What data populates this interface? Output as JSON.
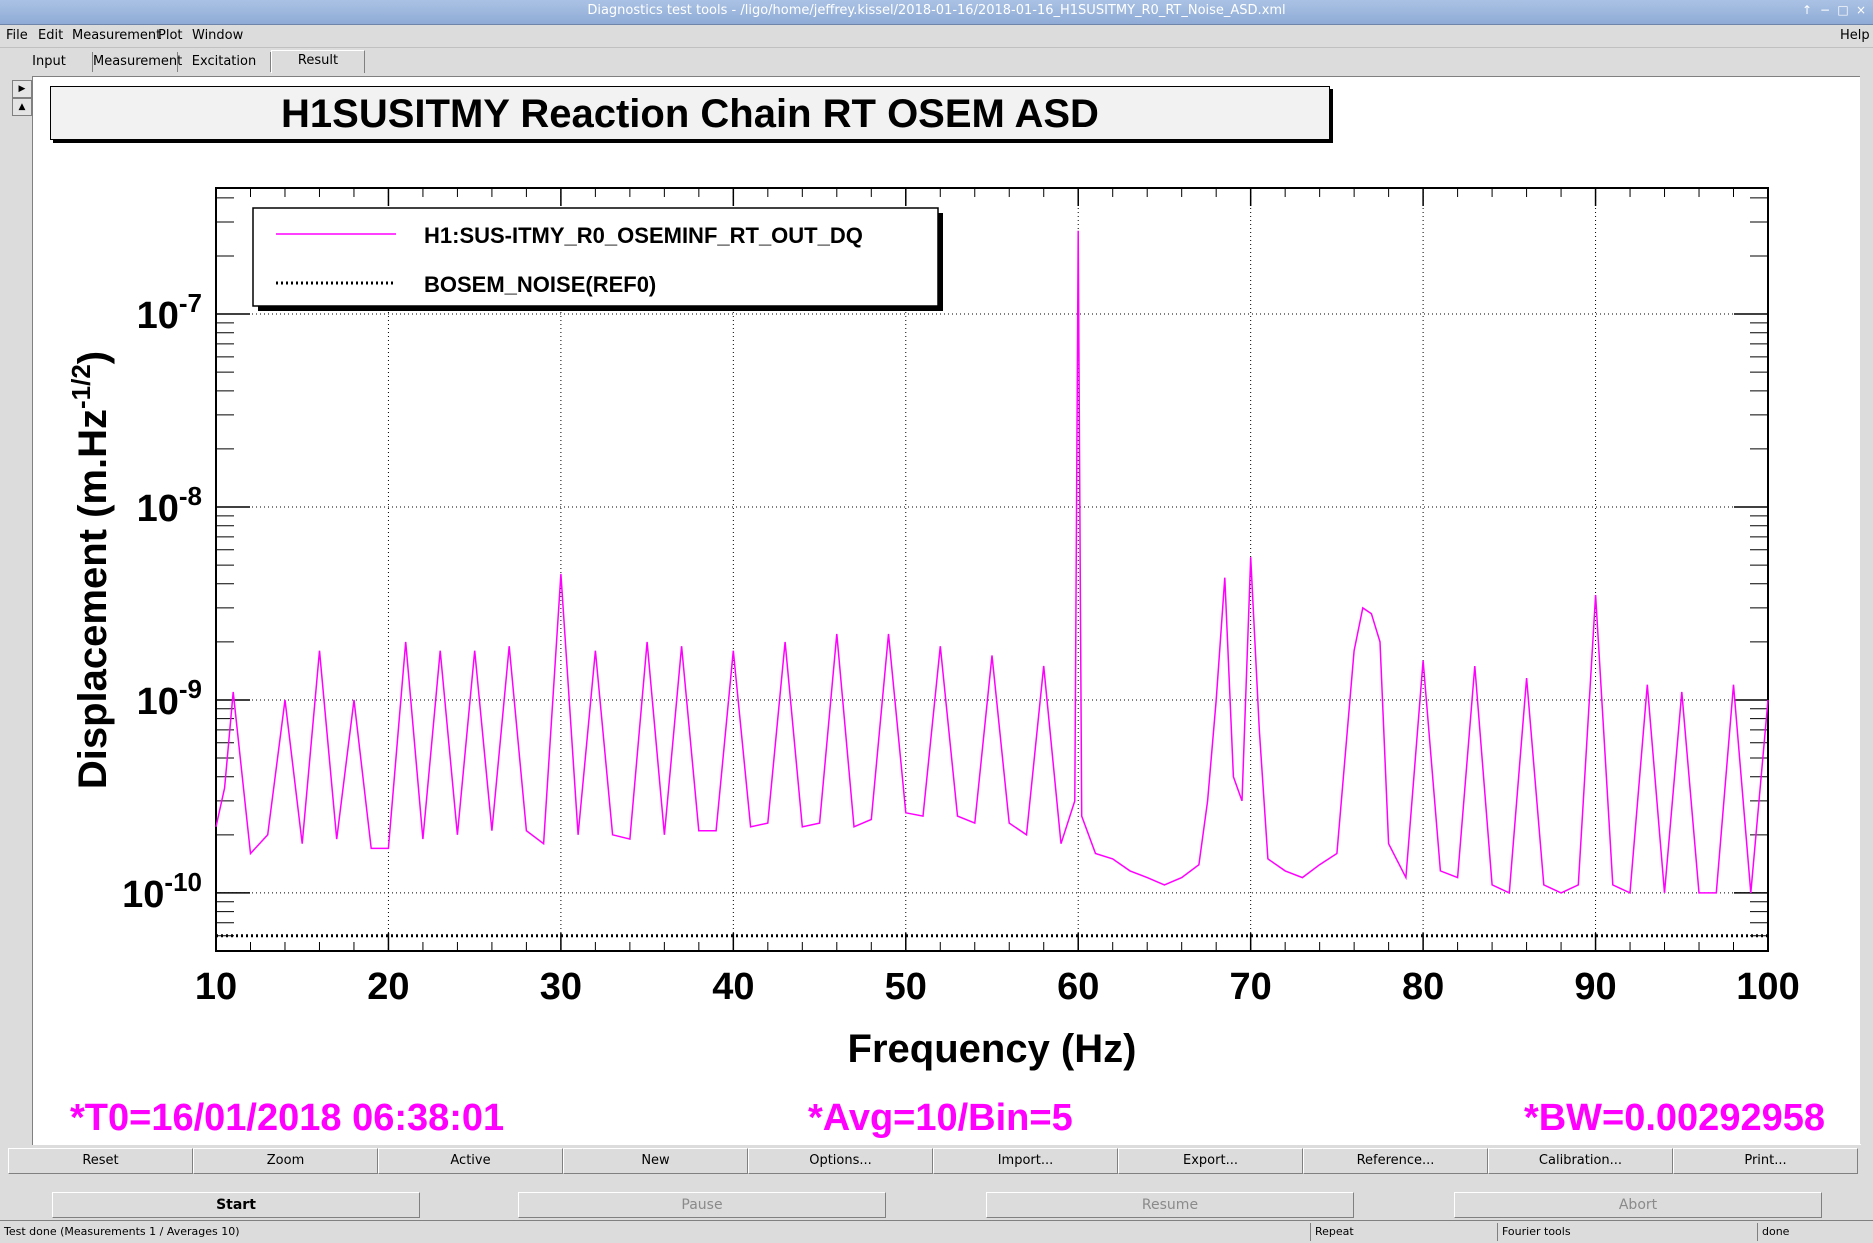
{
  "window": {
    "title": "Diagnostics test tools - /ligo/home/jeffrey.kissel/2018-01-16/2018-01-16_H1SUSITMY_R0_RT_Noise_ASD.xml",
    "controls": [
      "↑",
      "−",
      "□",
      "×"
    ]
  },
  "menu": {
    "items": [
      "File",
      "Edit",
      "Measurement",
      "Plot",
      "Window"
    ],
    "help": "Help"
  },
  "tabs": [
    "Input",
    "Measurement",
    "Excitation",
    "Result"
  ],
  "active_tab": "Result",
  "plot": {
    "title": "H1SUSITMY Reaction Chain RT OSEM ASD",
    "legend": [
      "H1:SUS-ITMY_R0_OSEMINF_RT_OUT_DQ",
      "BOSEM_NOISE(REF0)"
    ],
    "params": {
      "t0": "*T0=16/01/2018 06:38:01",
      "avg": "*Avg=10/Bin=5",
      "bw": "*BW=0.00292958"
    }
  },
  "chart_data": {
    "type": "line",
    "title": "H1SUSITMY Reaction Chain RT OSEM ASD",
    "xlabel": "Frequency (Hz)",
    "ylabel_main": "Displacement (m.Hz",
    "ylabel_exp": "-1/2",
    "ylabel_end": ")",
    "xlim": [
      10,
      100
    ],
    "ylim": [
      5e-11,
      4.5e-07
    ],
    "yscale": "log",
    "grid": true,
    "legend_position": "top-left",
    "xticks": [
      "10",
      "20",
      "30",
      "40",
      "50",
      "60",
      "70",
      "80",
      "90",
      "100"
    ],
    "yticks": [
      {
        "base": "10",
        "exp": "-7",
        "value": 1e-07
      },
      {
        "base": "10",
        "exp": "-8",
        "value": 1e-08
      },
      {
        "base": "10",
        "exp": "-9",
        "value": 1e-09
      },
      {
        "base": "10",
        "exp": "-10",
        "value": 1e-10
      }
    ],
    "series": [
      {
        "name": "H1:SUS-ITMY_R0_OSEMINF_RT_OUT_DQ",
        "color": "#ff00ff",
        "style": "solid",
        "x": [
          10,
          10.5,
          11,
          12,
          13,
          14,
          15,
          16,
          17,
          18,
          19,
          20,
          21,
          22,
          23,
          24,
          25,
          26,
          27,
          28,
          29,
          30,
          31,
          32,
          33,
          34,
          35,
          36,
          37,
          38,
          39,
          40,
          41,
          42,
          43,
          44,
          45,
          46,
          47,
          48,
          49,
          50,
          51,
          52,
          53,
          54,
          55,
          56,
          57,
          58,
          59,
          59.8,
          60,
          60.2,
          61,
          62,
          63,
          64,
          65,
          66,
          67,
          67.5,
          68,
          68.5,
          69,
          69.5,
          70,
          70.5,
          71,
          72,
          73,
          74,
          75,
          76,
          76.5,
          77,
          77.5,
          78,
          79,
          80,
          81,
          82,
          83,
          84,
          85,
          86,
          87,
          88,
          89,
          90,
          91,
          92,
          93,
          94,
          95,
          96,
          97,
          98,
          99,
          100
        ],
        "y": [
          2.2e-10,
          3.5e-10,
          1.1e-09,
          1.6e-10,
          2e-10,
          1e-09,
          1.8e-10,
          1.8e-09,
          1.9e-10,
          1e-09,
          1.7e-10,
          1.7e-10,
          2e-09,
          1.9e-10,
          1.8e-09,
          2e-10,
          1.8e-09,
          2.1e-10,
          1.9e-09,
          2.1e-10,
          1.8e-10,
          4.5e-09,
          2e-10,
          1.8e-09,
          2e-10,
          1.9e-10,
          2e-09,
          2e-10,
          1.9e-09,
          2.1e-10,
          2.1e-10,
          1.8e-09,
          2.2e-10,
          2.3e-10,
          2e-09,
          2.2e-10,
          2.3e-10,
          2.2e-09,
          2.2e-10,
          2.4e-10,
          2.2e-09,
          2.6e-10,
          2.5e-10,
          1.9e-09,
          2.5e-10,
          2.3e-10,
          1.7e-09,
          2.3e-10,
          2e-10,
          1.5e-09,
          1.8e-10,
          3e-10,
          2.7e-07,
          2.5e-10,
          1.6e-10,
          1.5e-10,
          1.3e-10,
          1.2e-10,
          1.1e-10,
          1.2e-10,
          1.4e-10,
          3e-10,
          1e-09,
          4.3e-09,
          4e-10,
          3e-10,
          5.5e-09,
          7e-10,
          1.5e-10,
          1.3e-10,
          1.2e-10,
          1.4e-10,
          1.6e-10,
          1.8e-09,
          3e-09,
          2.8e-09,
          2e-09,
          1.8e-10,
          1.2e-10,
          1.6e-09,
          1.3e-10,
          1.2e-10,
          1.5e-09,
          1.1e-10,
          1e-10,
          1.3e-09,
          1.1e-10,
          1e-10,
          1.1e-10,
          3.5e-09,
          1.1e-10,
          1e-10,
          1.2e-09,
          1e-10,
          1.1e-09,
          1e-10,
          1e-10,
          1.2e-09,
          1e-10,
          1e-09
        ]
      },
      {
        "name": "BOSEM_NOISE(REF0)",
        "color": "#000000",
        "style": "dotted",
        "x": [
          10,
          100
        ],
        "y": [
          6e-11,
          6e-11
        ]
      }
    ]
  },
  "toolbar": [
    "Reset",
    "Zoom",
    "Active",
    "New",
    "Options...",
    "Import...",
    "Export...",
    "Reference...",
    "Calibration...",
    "Print..."
  ],
  "controls": {
    "start": "Start",
    "pause": "Pause",
    "resume": "Resume",
    "abort": "Abort"
  },
  "status": {
    "message": "Test done (Measurements 1 / Averages 10)",
    "mode": "Repeat",
    "tool": "Fourier tools",
    "state": "done"
  }
}
